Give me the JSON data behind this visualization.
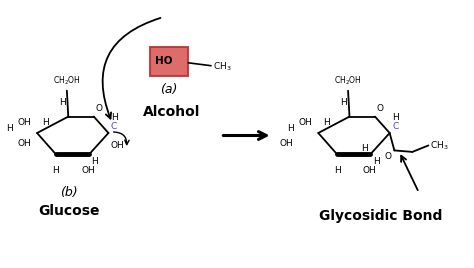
{
  "bg_color": "#ffffff",
  "glucose_label": "Glucose",
  "product_label": "Glycosidic Bond",
  "label_a": "(a)",
  "label_b": "(b)",
  "alcohol_text": "Alcohol",
  "C_color": "#4444cc",
  "figsize": [
    4.74,
    2.68
  ],
  "dpi": 100,
  "xlim": [
    0,
    10
  ],
  "ylim": [
    0,
    5.36
  ]
}
